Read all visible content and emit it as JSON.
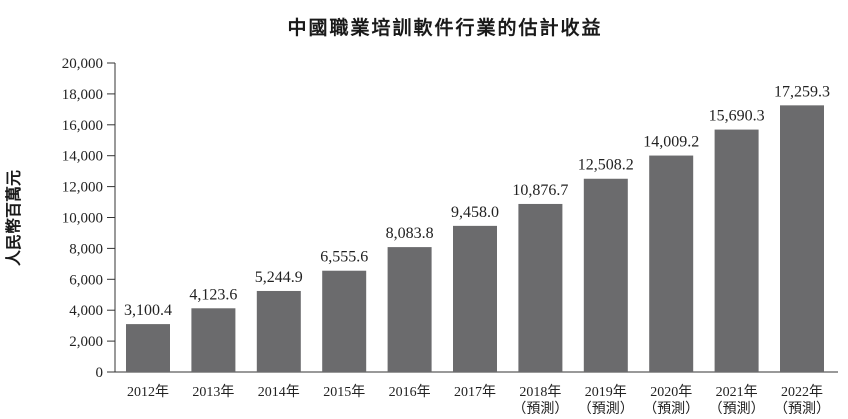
{
  "chart_data": {
    "type": "bar",
    "title": "中國職業培訓軟件行業的估計收益",
    "ylabel": "人民幣百萬元",
    "xlabel": "",
    "ylim": [
      0,
      20000
    ],
    "yticks": [
      "0",
      "2,000",
      "4,000",
      "6,000",
      "8,000",
      "10,000",
      "12,000",
      "14,000",
      "16,000",
      "18,000",
      "20,000"
    ],
    "categories": [
      {
        "year": "2012年",
        "note": ""
      },
      {
        "year": "2013年",
        "note": ""
      },
      {
        "year": "2014年",
        "note": ""
      },
      {
        "year": "2015年",
        "note": ""
      },
      {
        "year": "2016年",
        "note": ""
      },
      {
        "year": "2017年",
        "note": ""
      },
      {
        "year": "2018年",
        "note": "（預測）"
      },
      {
        "year": "2019年",
        "note": "（預測）"
      },
      {
        "year": "2020年",
        "note": "（預測）"
      },
      {
        "year": "2021年",
        "note": "（預測）"
      },
      {
        "year": "2022年",
        "note": "（預測）"
      }
    ],
    "values": [
      3100.4,
      4123.6,
      5244.9,
      6555.6,
      8083.8,
      9458.0,
      10876.7,
      12508.2,
      14009.2,
      15690.3,
      17259.3
    ],
    "labels": [
      "3,100.4",
      "4,123.6",
      "5,244.9",
      "6,555.6",
      "8,083.8",
      "9,458.0",
      "10,876.7",
      "12,508.2",
      "14,009.2",
      "15,690.3",
      "17,259.3"
    ],
    "bar_color": "#6b6b6d",
    "grid": false,
    "legend": "none"
  }
}
